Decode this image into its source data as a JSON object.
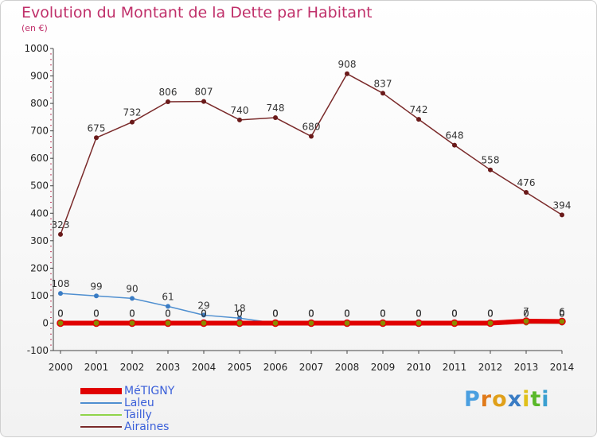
{
  "chart_data": {
    "type": "line",
    "title": "Evolution du Montant de la Dette par Habitant",
    "subtitle": "(en €)",
    "x": [
      2000,
      2001,
      2002,
      2003,
      2004,
      2005,
      2006,
      2007,
      2008,
      2009,
      2010,
      2011,
      2012,
      2013,
      2014
    ],
    "ylim": [
      -100,
      1000
    ],
    "yticks": [
      -100,
      0,
      100,
      200,
      300,
      400,
      500,
      600,
      700,
      800,
      900,
      1000
    ],
    "grid": false,
    "legend_position": "bottom-left",
    "series": [
      {
        "name": "MéTIGNY",
        "color": "#e00000",
        "marker_color": "#8a8a00",
        "values": [
          0,
          0,
          0,
          0,
          0,
          0,
          0,
          0,
          0,
          0,
          0,
          0,
          0,
          7,
          6
        ],
        "labels": [
          "0",
          "0",
          "0",
          "0",
          "0",
          "0",
          "0",
          "0",
          "0",
          "0",
          "0",
          "0",
          "0",
          "7",
          "6"
        ]
      },
      {
        "name": "Laleu",
        "color": "#4f8fd0",
        "marker_color": "#3a7cc4",
        "values": [
          108,
          99,
          90,
          61,
          29,
          18,
          0,
          0,
          0,
          0,
          0,
          0,
          0,
          0,
          0
        ],
        "labels": [
          "108",
          "99",
          "90",
          "61",
          "29",
          "18",
          "0",
          "0",
          "0",
          "0",
          "0",
          "0",
          "0",
          "0",
          "0"
        ]
      },
      {
        "name": "Tailly",
        "color": "#8fd44a",
        "marker_color": "#7cc43a",
        "values": [
          0,
          0,
          0,
          0,
          0,
          0,
          0,
          0,
          0,
          0,
          0,
          0,
          0,
          0,
          0
        ],
        "labels": [
          "0",
          "0",
          "0",
          "0",
          "0",
          "0",
          "0",
          "0",
          "0",
          "0",
          "0",
          "0",
          "0",
          "0",
          "0"
        ]
      },
      {
        "name": "Airaines",
        "color": "#7a2a2a",
        "marker_color": "#6a1a1a",
        "values": [
          323,
          675,
          732,
          806,
          807,
          740,
          748,
          680,
          908,
          837,
          742,
          648,
          558,
          476,
          394
        ],
        "labels": [
          "323",
          "675",
          "732",
          "806",
          "807",
          "740",
          "748",
          "680",
          "908",
          "837",
          "742",
          "648",
          "558",
          "476",
          "394"
        ]
      }
    ]
  },
  "logo": {
    "letters": [
      "P",
      "r",
      "o",
      "x",
      "i",
      "t",
      "i"
    ],
    "colors": [
      "#4a9fe0",
      "#e07a1a",
      "#e0a01a",
      "#3a7cc4",
      "#e0c01a",
      "#5ab82a",
      "#3a9fd0"
    ]
  }
}
